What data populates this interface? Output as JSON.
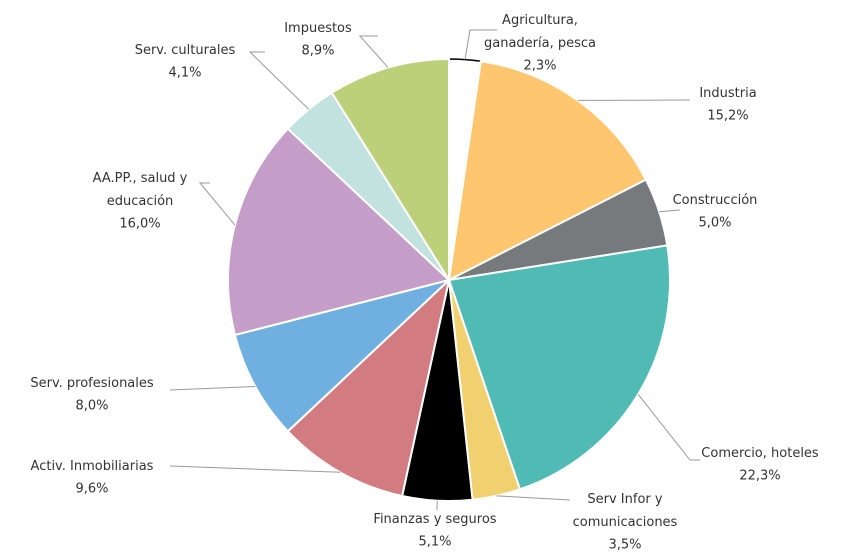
{
  "chart_data": {
    "type": "pie",
    "categories": [
      "Agricultura,\nganadería, pesca",
      "Industria",
      "Construcción",
      "Comercio, hoteles",
      "Serv Infor y\ncomunicaciones",
      "Finanzas y seguros",
      "Activ. Inmobiliarias",
      "Serv. profesionales",
      "AA.PP., salud y\neducación",
      "Serv. culturales",
      "Impuestos"
    ],
    "values": [
      2.3,
      15.2,
      5.0,
      22.3,
      3.5,
      5.1,
      9.6,
      8.0,
      16.0,
      4.1,
      8.9
    ],
    "value_labels": [
      "2,3%",
      "15,2%",
      "5,0%",
      "22,3%",
      "3,5%",
      "5,1%",
      "9,6%",
      "8,0%",
      "16,0%",
      "4,1%",
      "8,9%"
    ],
    "colors": [
      "#ffffff",
      "#fec76f",
      "#767a7c",
      "#50bbb4",
      "#f1d06f",
      "#000000",
      "#d27c82",
      "#6fb0e0",
      "#c49ec8",
      "#c1e2df",
      "#bcd07a"
    ]
  }
}
